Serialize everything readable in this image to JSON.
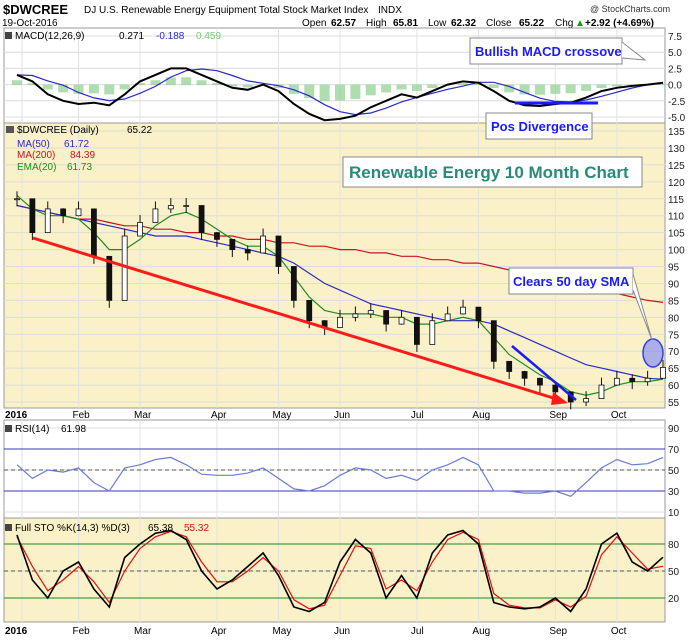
{
  "header": {
    "symbol": "$DWCREE",
    "name": "DJ U.S. Renewable Energy Equipment Total Stock Market Index",
    "exchange": "INDX",
    "date": "19-Oct-2016",
    "watermark": "@ StockCharts.com",
    "open_label": "Open",
    "open": "62.57",
    "high_label": "High",
    "high": "65.81",
    "low_label": "Low",
    "low": "62.32",
    "close_label": "Close",
    "close": "65.22",
    "chg_label": "Chg",
    "chg": "+2.92 (+4.69%)",
    "chg_arrow": "▲"
  },
  "months": [
    "2016",
    "Feb",
    "Mar",
    "Apr",
    "May",
    "Jun",
    "Jul",
    "Aug",
    "Sep",
    "Oct"
  ],
  "macd": {
    "label": "MACD(12,26,9)",
    "value": "0.271",
    "signal": "-0.188",
    "hist": "0.459",
    "ticks": [
      "7.5",
      "5.0",
      "2.5",
      "0.0",
      "-2.5",
      "-5.0"
    ],
    "callout_crossover": "Bullish MACD crossover",
    "callout_divergence": "Pos Divergence"
  },
  "price": {
    "label": "$DWCREE (Daily)",
    "last": "65.22",
    "ma50_label": "MA(50)",
    "ma50": "61.72",
    "ma200_label": "MA(200)",
    "ma200": "84.39",
    "ema20_label": "EMA(20)",
    "ema20": "61.73",
    "title": "Renewable Energy 10 Month Chart",
    "callout_sma": "Clears 50 day SMA",
    "ticks": [
      "135",
      "130",
      "125",
      "120",
      "115",
      "110",
      "105",
      "100",
      "95",
      "90",
      "85",
      "80",
      "75",
      "70",
      "65",
      "60",
      "55"
    ]
  },
  "rsi": {
    "label": "RSI(14)",
    "value": "61.98",
    "ticks": [
      "90",
      "70",
      "50",
      "30",
      "10"
    ]
  },
  "sto": {
    "label": "Full STO %K(14,3) %D(3)",
    "k": "65.38",
    "d": "55.32",
    "ticks": [
      "80",
      "50",
      "20"
    ]
  },
  "colors": {
    "ma50": "#2a2ac8",
    "ma200": "#c8141e",
    "ema20": "#1e8c1e",
    "trend": "#ff1a1a",
    "divergence": "#1a1aff",
    "panel_bg": "#faf1c8",
    "rsi_line": "#6a7bd6",
    "sto_k": "#000000",
    "sto_d": "#e01010"
  },
  "chart_data": {
    "type": "line",
    "x": [
      "2016-01-04",
      "2016-01-11",
      "2016-01-19",
      "2016-01-25",
      "2016-02-01",
      "2016-02-08",
      "2016-02-16",
      "2016-02-22",
      "2016-02-29",
      "2016-03-07",
      "2016-03-14",
      "2016-03-21",
      "2016-03-28",
      "2016-04-04",
      "2016-04-11",
      "2016-04-18",
      "2016-04-25",
      "2016-05-02",
      "2016-05-09",
      "2016-05-16",
      "2016-05-23",
      "2016-05-31",
      "2016-06-06",
      "2016-06-13",
      "2016-06-20",
      "2016-06-27",
      "2016-07-05",
      "2016-07-11",
      "2016-07-18",
      "2016-07-25",
      "2016-08-01",
      "2016-08-08",
      "2016-08-15",
      "2016-08-22",
      "2016-08-29",
      "2016-09-06",
      "2016-09-12",
      "2016-09-19",
      "2016-09-26",
      "2016-10-03",
      "2016-10-10",
      "2016-10-17",
      "2016-10-19"
    ],
    "series": [
      {
        "name": "$DWCREE (Daily)",
        "values": [
          115,
          105,
          112,
          110,
          112,
          98,
          85,
          104,
          108,
          112,
          113,
          113,
          105,
          103,
          100,
          99,
          104,
          95,
          85,
          79,
          77,
          80,
          81,
          82,
          78,
          80,
          72,
          79,
          81,
          83,
          79,
          67,
          64,
          62,
          60,
          58,
          55,
          56,
          60,
          62,
          61,
          62,
          65.22
        ]
      },
      {
        "name": "MA(50)",
        "values": [
          113,
          112,
          111,
          110,
          109,
          108,
          107,
          106,
          105,
          104,
          104,
          104,
          103,
          102,
          101,
          100,
          99,
          98,
          96,
          93,
          90,
          88,
          86,
          84,
          83,
          82,
          81,
          80,
          79,
          79,
          79,
          78,
          76,
          74,
          72,
          70,
          68,
          66,
          65,
          64,
          63,
          62,
          61.72
        ]
      },
      {
        "name": "MA(200)",
        "values": [
          113,
          112,
          111,
          110,
          109,
          109,
          108,
          107,
          107,
          106,
          106,
          105,
          105,
          104,
          104,
          103,
          103,
          102,
          102,
          101,
          101,
          100,
          100,
          99,
          99,
          98,
          98,
          97,
          97,
          96,
          96,
          95,
          94,
          93,
          92,
          91,
          90,
          89,
          88,
          87,
          86,
          85,
          84.39
        ]
      },
      {
        "name": "EMA(20)",
        "values": [
          116,
          112,
          110,
          110,
          109,
          105,
          100,
          100,
          103,
          107,
          110,
          111,
          109,
          106,
          103,
          101,
          101,
          98,
          92,
          86,
          82,
          81,
          81,
          81,
          80,
          80,
          78,
          78,
          79,
          80,
          79,
          74,
          69,
          66,
          63,
          61,
          58,
          57,
          58,
          60,
          61,
          61,
          61.73
        ]
      },
      {
        "name": "MACD(12,26,9)",
        "values": [
          1.5,
          0.5,
          -1.5,
          -2.5,
          -3.0,
          -2.8,
          -3.2,
          -1.5,
          0.5,
          1.5,
          2.5,
          2.5,
          1.5,
          0.5,
          -0.5,
          -0.8,
          0.0,
          -1.0,
          -3.0,
          -4.5,
          -5.5,
          -5.3,
          -4.8,
          -3.5,
          -2.5,
          -1.5,
          -2.0,
          -1.0,
          0.0,
          0.5,
          0.3,
          -1.0,
          -2.5,
          -3.2,
          -3.3,
          -3.0,
          -2.8,
          -2.0,
          -1.0,
          -0.5,
          -0.2,
          0.0,
          0.271
        ]
      },
      {
        "name": "RSI(14)",
        "values": [
          55,
          42,
          50,
          48,
          52,
          38,
          30,
          52,
          55,
          60,
          62,
          55,
          46,
          45,
          45,
          47,
          52,
          42,
          32,
          30,
          35,
          45,
          52,
          50,
          42,
          45,
          40,
          50,
          55,
          62,
          55,
          30,
          30,
          28,
          28,
          30,
          25,
          38,
          52,
          60,
          55,
          56,
          61.98
        ]
      },
      {
        "name": "Full STO %K(14,3)",
        "values": [
          90,
          40,
          20,
          50,
          60,
          30,
          10,
          65,
          80,
          92,
          95,
          85,
          50,
          30,
          40,
          55,
          70,
          45,
          10,
          5,
          15,
          60,
          85,
          70,
          20,
          45,
          20,
          70,
          90,
          95,
          80,
          15,
          10,
          8,
          10,
          20,
          5,
          30,
          80,
          92,
          60,
          50,
          65.38
        ]
      },
      {
        "name": "%D(3)",
        "values": [
          88,
          55,
          28,
          40,
          55,
          38,
          15,
          50,
          75,
          88,
          94,
          88,
          60,
          38,
          38,
          50,
          65,
          50,
          18,
          8,
          12,
          45,
          78,
          75,
          30,
          40,
          28,
          60,
          85,
          93,
          85,
          25,
          12,
          9,
          9,
          18,
          10,
          22,
          68,
          88,
          70,
          52,
          55.32
        ]
      }
    ],
    "panels": [
      {
        "name": "MACD(12,26,9)",
        "ylim": [
          -5,
          7.5
        ]
      },
      {
        "name": "$DWCREE (Daily)",
        "ylim": [
          55,
          135
        ],
        "annotations": [
          "Renewable Energy 10 Month Chart",
          "Clears 50 day SMA"
        ]
      },
      {
        "name": "RSI(14)",
        "ylim": [
          10,
          90
        ],
        "ref_lines": [
          70,
          50,
          30
        ]
      },
      {
        "name": "Full STO %K(14,3) %D(3)",
        "ylim": [
          0,
          100
        ],
        "ref_lines": [
          80,
          50,
          20
        ]
      }
    ]
  }
}
